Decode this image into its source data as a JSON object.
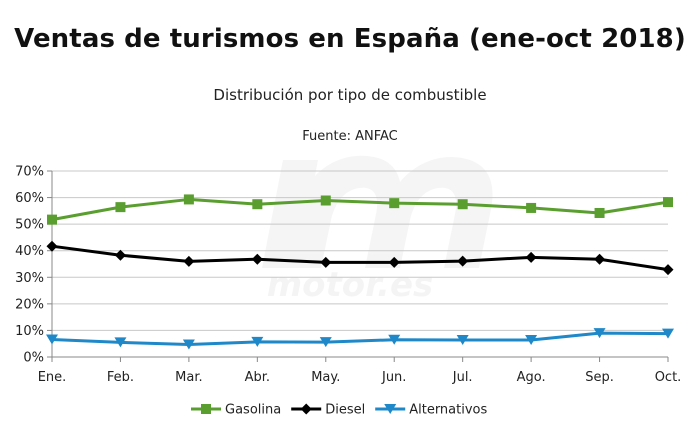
{
  "chart_data": {
    "type": "line",
    "title": "Ventas de turismos en España (ene-oct 2018)",
    "subtitle": "Distribución por tipo de combustible",
    "source": "Fuente: ANFAC",
    "categories": [
      "Ene.",
      "Feb.",
      "Mar.",
      "Abr.",
      "May.",
      "Jun.",
      "Jul.",
      "Ago.",
      "Sep.",
      "Oct."
    ],
    "ylim": [
      0,
      70
    ],
    "yticks": [
      0,
      10,
      20,
      30,
      40,
      50,
      60,
      70
    ],
    "ytick_labels": [
      "0%",
      "10%",
      "20%",
      "30%",
      "40%",
      "50%",
      "60%",
      "70%"
    ],
    "grid": "horizontal",
    "legend_position": "bottom",
    "series": [
      {
        "name": "Gasolina",
        "color": "#5a9e2f",
        "marker": "square",
        "values": [
          51.7,
          56.4,
          59.3,
          57.5,
          58.9,
          57.9,
          57.5,
          56.1,
          54.2,
          58.3
        ]
      },
      {
        "name": "Diesel",
        "color": "#000000",
        "marker": "diamond",
        "values": [
          41.7,
          38.3,
          36.0,
          36.8,
          35.6,
          35.6,
          36.1,
          37.5,
          36.8,
          32.9
        ]
      },
      {
        "name": "Alternativos",
        "color": "#1e88c8",
        "marker": "triangle-down",
        "values": [
          6.6,
          5.5,
          4.7,
          5.7,
          5.6,
          6.5,
          6.4,
          6.4,
          9.0,
          8.8
        ]
      }
    ]
  },
  "watermark": {
    "text": "motor.es"
  }
}
